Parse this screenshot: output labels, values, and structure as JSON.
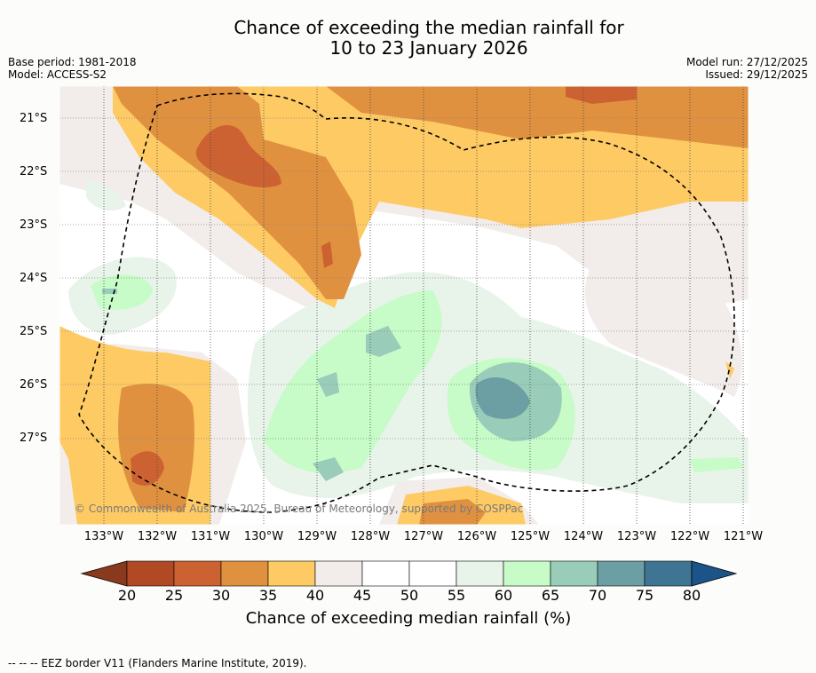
{
  "header": {
    "title_line1": "Chance of exceeding the median rainfall for",
    "title_line2": "10 to 23 January 2026",
    "base_period": "Base period: 1981-2018",
    "model": "Model: ACCESS-S2",
    "model_run": "Model run: 27/12/2025",
    "issued": "Issued: 29/12/2025"
  },
  "map": {
    "lat_labels": [
      "21°S",
      "22°S",
      "23°S",
      "24°S",
      "25°S",
      "26°S",
      "27°S"
    ],
    "lon_labels": [
      "133°W",
      "132°W",
      "131°W",
      "130°W",
      "129°W",
      "128°W",
      "127°W",
      "126°W",
      "125°W",
      "124°W",
      "123°W",
      "122°W",
      "121°W"
    ],
    "copyright": "© Commonwealth of Australia 2025, Bureau of Meteorology, supported by COSPPac"
  },
  "colorbar": {
    "ticks": [
      "20",
      "25",
      "30",
      "35",
      "40",
      "45",
      "50",
      "55",
      "60",
      "65",
      "70",
      "75",
      "80"
    ],
    "colors": [
      "#8a3a1c",
      "#b14a24",
      "#cc6232",
      "#e0913f",
      "#fdca64",
      "#f2edea",
      "#ffffff",
      "#ffffff",
      "#e8f4ea",
      "#c7fbc7",
      "#99cdb9",
      "#6b9fa4",
      "#3f7592",
      "#1c5388"
    ],
    "title": "Chance of exceeding median rainfall (%)"
  },
  "footer": {
    "legend_line": "-- -- -- EEZ border V11 (Flanders Marine Institute, 2019)."
  }
}
